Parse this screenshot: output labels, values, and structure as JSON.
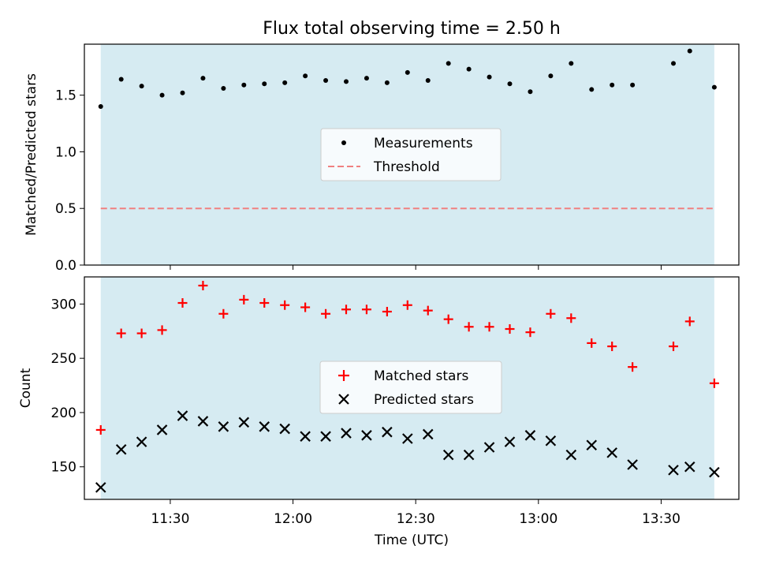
{
  "figure_title": "Flux total observing time = 2.50 h",
  "chart_data": [
    {
      "type": "scatter",
      "panel": "top",
      "xlabel": "",
      "ylabel": "Matched/Predicted stars",
      "x_type": "time",
      "xlim": [
        "11:09",
        "13:49"
      ],
      "ylim": [
        0,
        1.95
      ],
      "yticks": [
        0,
        0.5,
        1.0,
        1.5
      ],
      "ytick_labels": [
        "0.0",
        "0.5",
        "1.0",
        "1.5"
      ],
      "shaded_span": {
        "start": "11:13",
        "end": "13:43",
        "color": "#add8e6"
      },
      "legend": {
        "placement": "center",
        "entries": [
          "Measurements",
          "Threshold"
        ]
      },
      "series": [
        {
          "name": "Measurements",
          "marker": "dot",
          "color": "#000000",
          "x": [
            "11:13",
            "11:18",
            "11:23",
            "11:28",
            "11:33",
            "11:38",
            "11:43",
            "11:48",
            "11:53",
            "11:58",
            "12:03",
            "12:08",
            "12:13",
            "12:18",
            "12:23",
            "12:28",
            "12:33",
            "12:38",
            "12:43",
            "12:48",
            "12:53",
            "12:58",
            "13:03",
            "13:08",
            "13:13",
            "13:18",
            "13:23",
            "13:33",
            "13:37",
            "13:43"
          ],
          "y": [
            1.4,
            1.64,
            1.58,
            1.5,
            1.52,
            1.65,
            1.56,
            1.59,
            1.6,
            1.61,
            1.67,
            1.63,
            1.62,
            1.65,
            1.61,
            1.7,
            1.63,
            1.78,
            1.73,
            1.66,
            1.6,
            1.53,
            1.67,
            1.78,
            1.55,
            1.59,
            1.59,
            1.78,
            1.89,
            1.57
          ]
        },
        {
          "name": "Threshold",
          "marker": "dashed-line",
          "color": "#f08080",
          "y": 0.5
        }
      ]
    },
    {
      "type": "scatter",
      "panel": "bottom",
      "xlabel": "Time (UTC)",
      "ylabel": "Count",
      "x_type": "time",
      "xlim": [
        "11:09",
        "13:49"
      ],
      "ylim": [
        120,
        325
      ],
      "xticks": [
        "11:30",
        "12:00",
        "12:30",
        "13:00",
        "13:30"
      ],
      "yticks": [
        150,
        200,
        250,
        300
      ],
      "shaded_span": {
        "start": "11:13",
        "end": "13:43",
        "color": "#add8e6"
      },
      "legend": {
        "placement": "center",
        "entries": [
          "Matched stars",
          "Predicted stars"
        ]
      },
      "series": [
        {
          "name": "Matched stars",
          "marker": "plus",
          "color": "#ff0000",
          "x": [
            "11:13",
            "11:18",
            "11:23",
            "11:28",
            "11:33",
            "11:38",
            "11:43",
            "11:48",
            "11:53",
            "11:58",
            "12:03",
            "12:08",
            "12:13",
            "12:18",
            "12:23",
            "12:28",
            "12:33",
            "12:38",
            "12:43",
            "12:48",
            "12:53",
            "12:58",
            "13:03",
            "13:08",
            "13:13",
            "13:18",
            "13:23",
            "13:33",
            "13:37",
            "13:43"
          ],
          "y": [
            184,
            273,
            273,
            276,
            301,
            317,
            291,
            304,
            301,
            299,
            297,
            291,
            295,
            295,
            293,
            299,
            294,
            286,
            279,
            279,
            277,
            274,
            291,
            287,
            264,
            261,
            242,
            261,
            284,
            227
          ]
        },
        {
          "name": "Predicted stars",
          "marker": "x",
          "color": "#000000",
          "x": [
            "11:13",
            "11:18",
            "11:23",
            "11:28",
            "11:33",
            "11:38",
            "11:43",
            "11:48",
            "11:53",
            "11:58",
            "12:03",
            "12:08",
            "12:13",
            "12:18",
            "12:23",
            "12:28",
            "12:33",
            "12:38",
            "12:43",
            "12:48",
            "12:53",
            "12:58",
            "13:03",
            "13:08",
            "13:13",
            "13:18",
            "13:23",
            "13:33",
            "13:37",
            "13:43"
          ],
          "y": [
            131,
            166,
            173,
            184,
            197,
            192,
            187,
            191,
            187,
            185,
            178,
            178,
            181,
            179,
            182,
            176,
            180,
            161,
            161,
            168,
            173,
            179,
            174,
            161,
            170,
            163,
            152,
            147,
            150,
            145
          ]
        }
      ]
    }
  ]
}
